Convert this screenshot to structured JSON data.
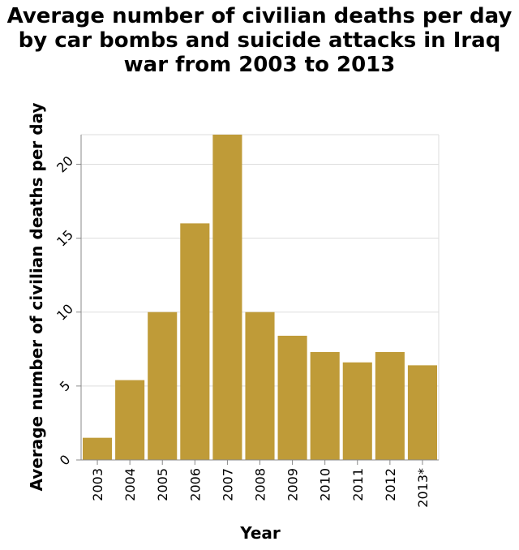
{
  "chart_data": {
    "type": "bar",
    "title_lines": [
      "Average number of civilian deaths per day",
      "by car bombs and suicide attacks in Iraq",
      "war from 2003 to 2013"
    ],
    "xlabel": "Year",
    "ylabel": "Average number of civilian deaths per day",
    "categories": [
      "2003",
      "2004",
      "2005",
      "2006",
      "2007",
      "2008",
      "2009",
      "2010",
      "2011",
      "2012",
      "2013*"
    ],
    "values": [
      1.5,
      5.4,
      10,
      16,
      22,
      10,
      8.4,
      7.3,
      6.6,
      7.3,
      6.4
    ],
    "yticks": [
      0,
      5,
      10,
      15,
      20
    ],
    "ylim": [
      0,
      22
    ],
    "grid": true,
    "bar_color": "#bf9b38",
    "grid_color": "#dddddd",
    "axis_color": "#888888"
  }
}
